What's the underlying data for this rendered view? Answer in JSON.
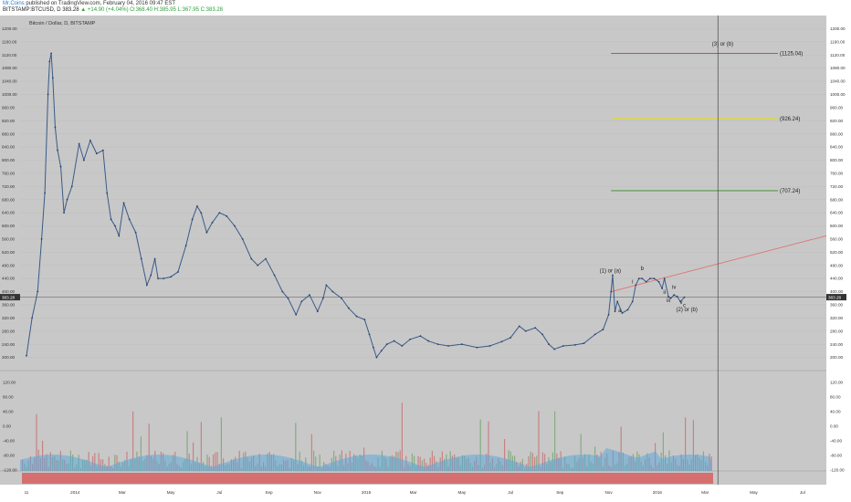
{
  "header": {
    "author": "Mr.Coins",
    "published": "published on TradingView.com, February 04, 2016 09:47 EST",
    "symbol": "BITSTAMP:BTCUSD, D",
    "last": "383.28",
    "change": "▲ +14.90 (+4.04%)",
    "ohlc": "O:368.40 H:385.95 L:367.95 C:383.28"
  },
  "chart_data": {
    "type": "line",
    "title": "Bitcoin / Dollar, D, BITSTAMP",
    "x_tick_labels": [
      "11",
      "2014",
      "Mar",
      "May",
      "Jul",
      "Sep",
      "Nov",
      "2015",
      "Mar",
      "May",
      "Jul",
      "Sep",
      "Nov",
      "2016",
      "Mar",
      "May",
      "Jul"
    ],
    "ylim": [
      160,
      1240
    ],
    "y_ticks": [
      200,
      240,
      280,
      320,
      360,
      400,
      440,
      480,
      520,
      560,
      600,
      640,
      680,
      720,
      760,
      800,
      840,
      880,
      920,
      960,
      1000,
      1040,
      1080,
      1120,
      1160,
      1200
    ],
    "y_tick_labels": [
      "200.00",
      "240.00",
      "280.00",
      "320.00",
      "360.00",
      "400.00",
      "440.00",
      "480.00",
      "520.00",
      "560.00",
      "600.00",
      "640.00",
      "680.00",
      "720.00",
      "760.00",
      "800.00",
      "840.00",
      "880.00",
      "920.00",
      "960.00",
      "1000.00",
      "1040.00",
      "1080.00",
      "1120.00",
      "1160.00",
      "1200.00"
    ],
    "last_price_label": "383.28",
    "last_price": 383.28,
    "series": [
      {
        "x": [
          "2013-11-01",
          "2013-11-08",
          "2013-11-15",
          "2013-11-20",
          "2013-11-24",
          "2013-11-28",
          "2013-11-30",
          "2013-12-02",
          "2013-12-04",
          "2013-12-07",
          "2013-12-10",
          "2013-12-14",
          "2013-12-18",
          "2013-12-22",
          "2013-12-28",
          "2014-01-06",
          "2014-01-12",
          "2014-01-20",
          "2014-01-28",
          "2014-02-05",
          "2014-02-10",
          "2014-02-15",
          "2014-02-20",
          "2014-02-25",
          "2014-03-03",
          "2014-03-10",
          "2014-03-18",
          "2014-03-25",
          "2014-04-01",
          "2014-04-06",
          "2014-04-11",
          "2014-04-15",
          "2014-04-22",
          "2014-05-01",
          "2014-05-10",
          "2014-05-20",
          "2014-05-28",
          "2014-06-03",
          "2014-06-08",
          "2014-06-15",
          "2014-06-22",
          "2014-07-01",
          "2014-07-10",
          "2014-07-20",
          "2014-07-30",
          "2014-08-10",
          "2014-08-18",
          "2014-08-28",
          "2014-09-08",
          "2014-09-18",
          "2014-09-25",
          "2014-10-05",
          "2014-10-12",
          "2014-10-22",
          "2014-11-01",
          "2014-11-08",
          "2014-11-12",
          "2014-11-20",
          "2014-12-01",
          "2014-12-10",
          "2014-12-20",
          "2014-12-30",
          "2015-01-05",
          "2015-01-10",
          "2015-01-14",
          "2015-01-20",
          "2015-01-27",
          "2015-02-05",
          "2015-02-15",
          "2015-02-25",
          "2015-03-10",
          "2015-03-20",
          "2015-04-01",
          "2015-04-14",
          "2015-05-01",
          "2015-05-20",
          "2015-06-05",
          "2015-06-20",
          "2015-07-01",
          "2015-07-12",
          "2015-07-20",
          "2015-08-01",
          "2015-08-10",
          "2015-08-18",
          "2015-08-25",
          "2015-09-05",
          "2015-09-20",
          "2015-10-01",
          "2015-10-15",
          "2015-10-25",
          "2015-11-01",
          "2015-11-04",
          "2015-11-06",
          "2015-11-09",
          "2015-11-12",
          "2015-11-18",
          "2015-11-25",
          "2015-12-01",
          "2015-12-05",
          "2015-12-09",
          "2015-12-13",
          "2015-12-18",
          "2015-12-23",
          "2015-12-28",
          "2016-01-03",
          "2016-01-07",
          "2016-01-10",
          "2016-01-15",
          "2016-01-18",
          "2016-01-22",
          "2016-01-26",
          "2016-01-30",
          "2016-02-04"
        ],
        "values": [
          205,
          320,
          400,
          560,
          700,
          1000,
          1100,
          1125,
          1050,
          900,
          830,
          780,
          640,
          680,
          720,
          850,
          800,
          860,
          820,
          830,
          700,
          620,
          600,
          570,
          670,
          620,
          580,
          500,
          420,
          450,
          500,
          440,
          440,
          445,
          460,
          540,
          620,
          660,
          640,
          580,
          610,
          640,
          630,
          600,
          560,
          500,
          480,
          500,
          450,
          400,
          380,
          330,
          370,
          390,
          340,
          380,
          420,
          400,
          380,
          350,
          325,
          315,
          270,
          230,
          200,
          220,
          240,
          250,
          235,
          255,
          265,
          250,
          240,
          235,
          240,
          230,
          235,
          248,
          260,
          295,
          280,
          290,
          270,
          240,
          225,
          235,
          238,
          243,
          270,
          285,
          330,
          400,
          450,
          340,
          370,
          335,
          345,
          370,
          420,
          440,
          440,
          430,
          440,
          440,
          430,
          410,
          440,
          385,
          380,
          390,
          385,
          370,
          383
        ]
      }
    ],
    "horizontal_levels": [
      {
        "label": "(1125.04)",
        "value": 1125.04,
        "color": "#e03030",
        "from": "2015-11-04"
      },
      {
        "label": "(926.24)",
        "value": 926.24,
        "color": "#e8e000",
        "from": "2015-11-04"
      },
      {
        "label": "(707.24)",
        "value": 707.24,
        "color": "#3a8a2a",
        "from": "2015-11-04"
      }
    ],
    "trendline": {
      "color": "#e07070",
      "from": {
        "x": "2015-11-04",
        "y": 400
      },
      "to": {
        "x": "2016-07-31",
        "y": 570
      }
    },
    "vertical_line": {
      "x": "2016-03-17"
    },
    "wave_labels": [
      {
        "text": "(1) or (a)",
        "x": "2015-11-03",
        "y": 458
      },
      {
        "text": "(2) or (b)",
        "x": "2016-02-07",
        "y": 340
      },
      {
        "text": "(3) or (b)",
        "x": "2016-03-23",
        "y": 1148
      },
      {
        "text": "a",
        "x": "2015-11-15",
        "y": 338
      },
      {
        "text": "b",
        "x": "2015-12-13",
        "y": 465
      },
      {
        "text": "c",
        "x": "2016-02-04",
        "y": 353
      },
      {
        "text": "i",
        "x": "2015-12-01",
        "y": 425
      },
      {
        "text": "ii",
        "x": "2016-01-10",
        "y": 393
      },
      {
        "text": "iii",
        "x": "2016-01-15",
        "y": 368
      },
      {
        "text": "iv",
        "x": "2016-01-22",
        "y": 408
      },
      {
        "text": "v",
        "x": "2016-01-31",
        "y": 362
      }
    ],
    "indicator_ticks": [
      "120.00",
      "80.00",
      "40.00",
      "0.00",
      "-40.00",
      "-80.00",
      "-120.00"
    ],
    "colors": {
      "price_line": "#3a5a88",
      "plot_bg": "#c8c8c8",
      "vol_up": "#6aa064",
      "vol_down": "#c86464",
      "osc_area": "#5ca8d8"
    }
  }
}
